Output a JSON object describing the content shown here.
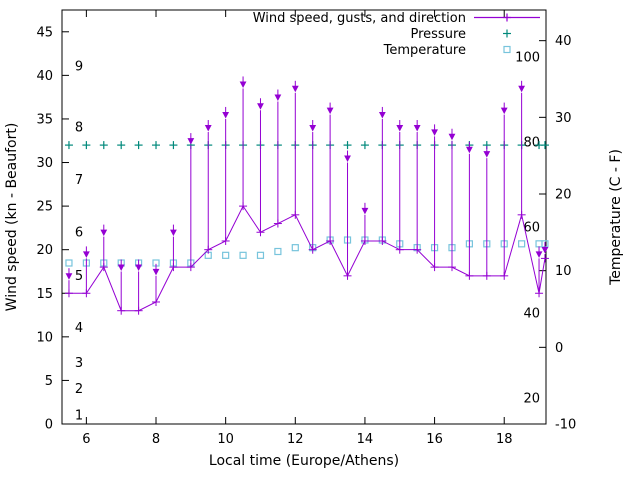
{
  "chart_data": {
    "type": "line",
    "title": "",
    "xlabel": "Local time (Europe/Athens)",
    "ylabel_left": "Wind speed (kn - Beaufort)",
    "ylabel_right": "Temperature (C - F)",
    "xlim": [
      5.3,
      19.2
    ],
    "ylim_left": [
      0,
      47.5
    ],
    "ylim_right": [
      -10,
      44
    ],
    "x_ticks": [
      6,
      8,
      10,
      12,
      14,
      16,
      18
    ],
    "y_ticks_left": [
      0,
      5,
      10,
      15,
      20,
      25,
      30,
      35,
      40,
      45
    ],
    "y_ticks_right": [
      -10,
      0,
      10,
      20,
      30,
      40
    ],
    "grid": false,
    "legend_position": "top-right-inside",
    "beaufort_scale_labels": [
      {
        "label": "1",
        "kn": 1
      },
      {
        "label": "2",
        "kn": 4
      },
      {
        "label": "3",
        "kn": 7
      },
      {
        "label": "4",
        "kn": 11
      },
      {
        "label": "5",
        "kn": 17
      },
      {
        "label": "6",
        "kn": 22
      },
      {
        "label": "7",
        "kn": 28
      },
      {
        "label": "8",
        "kn": 34
      },
      {
        "label": "9",
        "kn": 41
      }
    ],
    "fahrenheit_scale_labels": [
      {
        "label": "20",
        "c": -6.7
      },
      {
        "label": "40",
        "c": 4.4
      },
      {
        "label": "60",
        "c": 15.6
      },
      {
        "label": "80",
        "c": 26.7
      },
      {
        "label": "100",
        "c": 37.8
      }
    ],
    "legend": [
      {
        "label": "Wind speed, gusts, and direction",
        "series": "wind",
        "color": "#9400d3",
        "marker": "line-plus"
      },
      {
        "label": "Pressure",
        "series": "pressure",
        "color": "#00897b",
        "marker": "plus"
      },
      {
        "label": "Temperature",
        "series": "temperature",
        "color": "#77c4dc",
        "marker": "open-square"
      }
    ],
    "x_hours": [
      5.5,
      6,
      6.5,
      7,
      7.5,
      8,
      8.5,
      9,
      9.5,
      10,
      10.5,
      11,
      11.5,
      12,
      12.5,
      13,
      13.5,
      14,
      14.5,
      15,
      15.5,
      16,
      16.5,
      17,
      17.5,
      18,
      18.5,
      19,
      19.17
    ],
    "wind_speed_kn": [
      15,
      15,
      18,
      13,
      13,
      14,
      18,
      18,
      20,
      21,
      25,
      22,
      23,
      24,
      20,
      21,
      17,
      21,
      21,
      20,
      20,
      18,
      18,
      17,
      17,
      17,
      24,
      15,
      19
    ],
    "wind_gust_kn": [
      16.5,
      19,
      21.5,
      17.5,
      17.5,
      17,
      21.5,
      32,
      33.5,
      35,
      38.5,
      36,
      37,
      38,
      33.5,
      35.5,
      30,
      24,
      35,
      33.5,
      33.5,
      33,
      32.5,
      31,
      30.5,
      35.5,
      38,
      19,
      19.5
    ],
    "gust_arrow_dir_deg": 180,
    "pressure_level_on_left_axis": 32,
    "temperature_c": [
      11,
      11,
      11,
      11,
      11,
      11,
      11,
      11,
      12,
      12,
      12,
      12,
      12.5,
      13,
      13,
      14,
      14,
      14,
      14,
      13.5,
      13,
      13,
      13,
      13.5,
      13.5,
      13.5,
      13.5,
      13.5,
      13.5
    ]
  }
}
